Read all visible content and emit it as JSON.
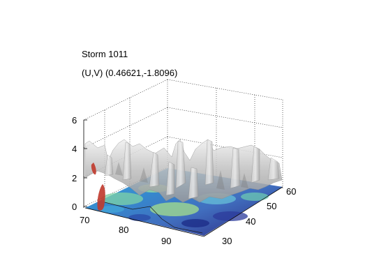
{
  "title": {
    "line1": "Storm 1011",
    "line2": "(U,V) (0.46621,-1.8096)"
  },
  "chart_data": {
    "type": "surface3d",
    "title": "Storm 1011",
    "subtitle": "(U,V) (0.46621,-1.8096)",
    "xlabel": "",
    "ylabel": "",
    "zlabel": "",
    "x_ticks": [
      70,
      80,
      90
    ],
    "y_ticks": [
      30,
      40,
      50,
      60
    ],
    "z_ticks": [
      0,
      2,
      4,
      6
    ],
    "xlim": [
      70,
      97
    ],
    "ylim": [
      27,
      62
    ],
    "zlim": [
      0,
      6
    ],
    "grid": true,
    "base_colormap": "jet",
    "isosurface_color": "#c8c8c8",
    "highlight_color": "#c0392b"
  }
}
